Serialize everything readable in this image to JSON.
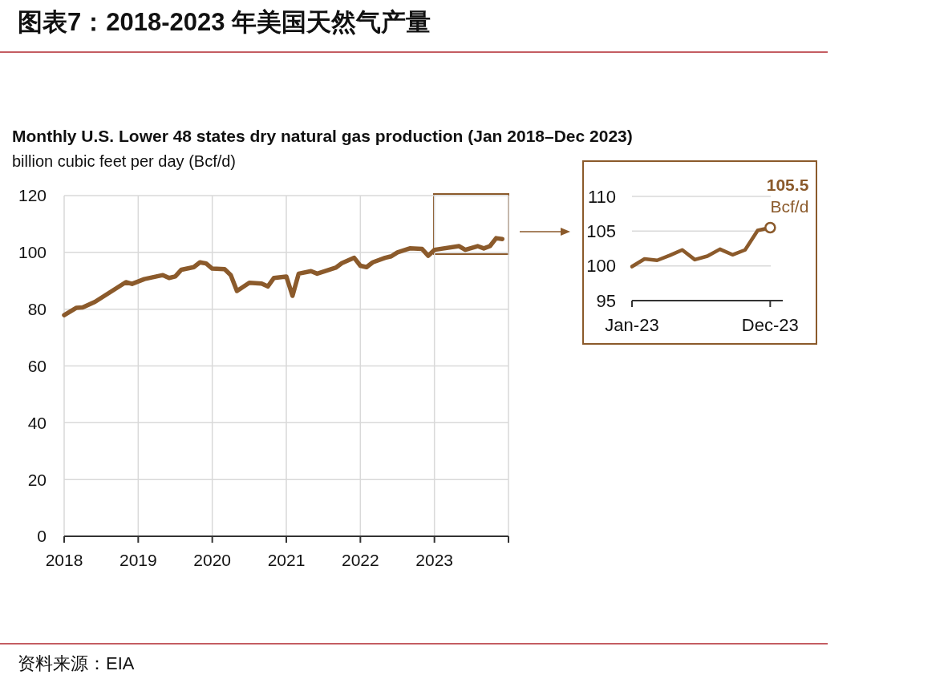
{
  "chart_data": [
    {
      "type": "line",
      "title": "图表7：2018-2023 年美国天然气产量",
      "subtitle": "Monthly U.S. Lower 48 states dry natural gas production (Jan 2018–Dec 2023)",
      "ylabel": "billion cubic feet per day (Bcf/d)",
      "annotations": [
        "资料来源：EIA"
      ],
      "xlim": [
        "2018-01",
        "2024-01"
      ],
      "xticks": [
        "2018",
        "2019",
        "2020",
        "2021",
        "2022",
        "2023",
        {
          "value": "2024",
          "label": null
        }
      ],
      "ylim": [
        0,
        120
      ],
      "yticks": [
        0,
        20,
        40,
        60,
        80,
        100,
        120
      ],
      "grid": true,
      "series": [
        {
          "color": "#8b5a2b",
          "x": [
            "2018-01",
            "2018-03",
            "2018-04",
            "2018-06",
            "2018-11",
            "2018-12",
            "2019-02",
            "2019-05",
            "2019-06",
            "2019-07",
            "2019-08",
            "2019-10",
            "2019-11",
            "2019-12",
            "2020-01",
            "2020-03",
            "2020-04",
            "2020-05",
            "2020-07",
            "2020-09",
            "2020-10",
            "2020-11",
            "2021-01",
            "2021-02",
            "2021-03",
            "2021-05",
            "2021-06",
            "2021-08",
            "2021-09",
            "2021-10",
            "2021-12",
            "2022-01",
            "2022-02",
            "2022-03",
            "2022-05",
            "2022-06",
            "2022-07",
            "2022-09",
            "2022-11",
            "2022-12",
            "2023-01",
            "2023-05",
            "2023-06",
            "2023-08",
            "2023-09",
            "2023-10",
            "2023-11",
            "2023-12"
          ],
          "values": [
            77.9,
            80.5,
            80.6,
            82.6,
            89.5,
            88.9,
            90.6,
            92.0,
            91.0,
            91.5,
            93.9,
            94.8,
            96.5,
            96.1,
            94.3,
            94.1,
            92.0,
            86.4,
            89.3,
            89.0,
            88.0,
            91.0,
            91.5,
            84.7,
            92.5,
            93.4,
            92.5,
            93.9,
            94.6,
            96.2,
            98.1,
            95.3,
            94.8,
            96.5,
            98.1,
            98.6,
            100.0,
            101.4,
            101.2,
            98.8,
            100.9,
            102.2,
            100.9,
            102.2,
            101.4,
            102.2,
            105.0,
            104.7
          ]
        }
      ]
    },
    {
      "type": "line",
      "xlim": [
        "2023-01",
        "2024-01"
      ],
      "xticks": [
        {
          "value": "2023-01",
          "label": "Jan-23"
        },
        {
          "value": "2023-12",
          "label": "Dec-23"
        }
      ],
      "ylim": [
        95,
        110
      ],
      "yticks": [
        95,
        100,
        105,
        110
      ],
      "grid": "y",
      "annotations": [
        {
          "text": "105.5\nBcf/d",
          "x": "2023-12",
          "y": 105.5
        }
      ],
      "series": [
        {
          "color": "#8b5a2b",
          "x": [
            "2023-01",
            "2023-02",
            "2023-03",
            "2023-04",
            "2023-05",
            "2023-06",
            "2023-07",
            "2023-08",
            "2023-09",
            "2023-10",
            "2023-11",
            "2023-12"
          ],
          "values": [
            99.9,
            101.0,
            100.8,
            101.5,
            102.3,
            100.9,
            101.4,
            102.4,
            101.6,
            102.3,
            105.1,
            105.5
          ]
        }
      ]
    }
  ]
}
